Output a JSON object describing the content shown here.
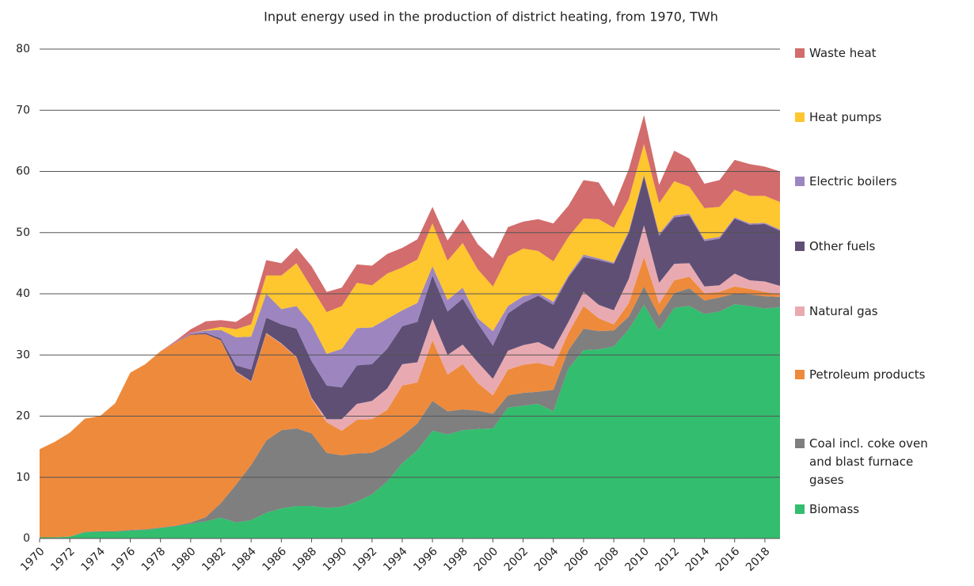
{
  "chart_data": {
    "type": "area",
    "title": "Input energy used in the production of district heating, from 1970, TWh",
    "x": [
      1970,
      1971,
      1972,
      1973,
      1974,
      1975,
      1976,
      1977,
      1978,
      1979,
      1980,
      1981,
      1982,
      1983,
      1984,
      1985,
      1986,
      1987,
      1988,
      1989,
      1990,
      1991,
      1992,
      1993,
      1994,
      1995,
      1996,
      1997,
      1998,
      1999,
      2000,
      2001,
      2002,
      2003,
      2004,
      2005,
      2006,
      2007,
      2008,
      2009,
      2010,
      2011,
      2012,
      2013,
      2014,
      2015,
      2016,
      2017,
      2018,
      2019
    ],
    "xlim": [
      1970,
      2019
    ],
    "xticks": [
      1970,
      1972,
      1974,
      1976,
      1978,
      1980,
      1982,
      1984,
      1986,
      1988,
      1990,
      1992,
      1994,
      1996,
      1998,
      2000,
      2002,
      2004,
      2006,
      2008,
      2010,
      2012,
      2014,
      2016,
      2018
    ],
    "ylim": [
      0,
      80
    ],
    "yticks": [
      0,
      10,
      20,
      30,
      40,
      50,
      60,
      70,
      80
    ],
    "grid": true,
    "stacked": true,
    "legend": "right",
    "series": [
      {
        "name": "Biomass",
        "color": "#33bd6e",
        "values": [
          0.2,
          0.2,
          0.3,
          1.0,
          1.1,
          1.1,
          1.3,
          1.4,
          1.7,
          2.0,
          2.4,
          2.8,
          3.4,
          2.6,
          3.0,
          4.2,
          4.9,
          5.3,
          5.3,
          5.0,
          5.2,
          6.0,
          7.2,
          9.3,
          12.3,
          14.4,
          17.6,
          17.0,
          17.7,
          17.9,
          18.0,
          21.4,
          21.7,
          22.0,
          20.8,
          27.8,
          30.8,
          30.9,
          31.4,
          34.2,
          38.2,
          34.0,
          37.7,
          38.0,
          36.7,
          37.1,
          38.3,
          38.0,
          37.6,
          37.8
        ]
      },
      {
        "name": "Coal incl. coke oven and blast furnace gases",
        "color": "#7f7f7f",
        "values": [
          0,
          0,
          0,
          0.1,
          0.1,
          0.1,
          0.1,
          0.1,
          0.1,
          0.1,
          0.2,
          0.7,
          2.4,
          6.2,
          9.0,
          11.8,
          12.8,
          12.7,
          11.9,
          9.0,
          8.4,
          7.9,
          6.8,
          5.9,
          4.5,
          4.4,
          4.9,
          3.8,
          3.4,
          3.0,
          2.4,
          2.0,
          2.1,
          2.0,
          3.5,
          3.0,
          3.5,
          3.0,
          2.6,
          2.1,
          3.0,
          2.4,
          2.4,
          2.9,
          2.2,
          2.3,
          1.7,
          1.9,
          2.0,
          1.7
        ]
      },
      {
        "name": "Petroleum products",
        "color": "#ee8a3c",
        "values": [
          14.4,
          15.6,
          17.0,
          18.5,
          18.8,
          20.9,
          25.7,
          27.0,
          28.8,
          29.9,
          30.7,
          29.9,
          26.6,
          18.4,
          13.6,
          17.5,
          14.1,
          11.6,
          5.6,
          5.0,
          4.0,
          5.5,
          5.5,
          5.8,
          8.2,
          6.7,
          9.9,
          6.0,
          7.4,
          4.5,
          3.0,
          4.2,
          4.6,
          4.7,
          3.8,
          2.8,
          3.7,
          2.1,
          1.0,
          2.2,
          4.8,
          2.0,
          2.1,
          1.9,
          1.2,
          0.9,
          1.2,
          0.9,
          0.7,
          0.4
        ]
      },
      {
        "name": "Natural gas",
        "color": "#e8aab0",
        "values": [
          0,
          0,
          0,
          0,
          0,
          0,
          0,
          0,
          0,
          0,
          0,
          0,
          0,
          0.1,
          0.1,
          0.1,
          0.1,
          0.1,
          0.2,
          0.5,
          1.9,
          2.6,
          3.0,
          3.5,
          3.5,
          3.3,
          3.5,
          3.2,
          3.2,
          3.4,
          2.7,
          3.1,
          3.2,
          3.4,
          2.8,
          1.8,
          2.3,
          2.2,
          2.3,
          4.0,
          5.2,
          3.4,
          2.7,
          2.2,
          1.1,
          1.1,
          2.1,
          1.4,
          1.7,
          1.4
        ]
      },
      {
        "name": "Other fuels",
        "color": "#5f4f75",
        "values": [
          0,
          0,
          0,
          0,
          0,
          0,
          0,
          0,
          0,
          0,
          0.1,
          0.2,
          0.3,
          1.0,
          1.9,
          2.5,
          3.1,
          4.6,
          6.0,
          5.5,
          5.2,
          6.3,
          6.0,
          6.5,
          6.2,
          6.6,
          7.1,
          7.1,
          7.5,
          6.4,
          5.4,
          6.1,
          6.9,
          7.6,
          7.3,
          7.3,
          5.7,
          7.3,
          7.6,
          7.5,
          8.0,
          7.7,
          7.6,
          7.8,
          7.4,
          7.6,
          9.0,
          9.1,
          9.4,
          9.0
        ]
      },
      {
        "name": "Electric boilers",
        "color": "#9d86bf",
        "values": [
          0,
          0,
          0,
          0,
          0,
          0,
          0,
          0,
          0,
          0.1,
          0.2,
          0.4,
          1.4,
          4.6,
          5.4,
          3.9,
          2.5,
          3.7,
          6.0,
          5.2,
          6.3,
          6.1,
          6.0,
          4.9,
          2.6,
          3.1,
          1.5,
          1.9,
          1.8,
          0.8,
          2.4,
          1.2,
          1.1,
          0.4,
          0.5,
          0.3,
          0.4,
          0.3,
          0.2,
          0.3,
          0.3,
          0.3,
          0.3,
          0.3,
          0.3,
          0.3,
          0.2,
          0.2,
          0.2,
          0.2
        ]
      },
      {
        "name": "Heat pumps",
        "color": "#fec62f",
        "values": [
          0,
          0,
          0,
          0,
          0,
          0,
          0,
          0,
          0,
          0,
          0,
          0.1,
          0.5,
          1.3,
          2.0,
          3.0,
          5.5,
          7.0,
          6.0,
          6.8,
          7.0,
          7.4,
          6.9,
          7.4,
          7.0,
          7.1,
          7.0,
          6.4,
          7.3,
          8.0,
          7.3,
          8.1,
          7.8,
          6.9,
          6.6,
          6.3,
          5.9,
          6.4,
          5.7,
          5.2,
          5.0,
          5.0,
          5.6,
          4.4,
          5.1,
          4.9,
          4.5,
          4.5,
          4.4,
          4.5
        ]
      },
      {
        "name": "Waste heat",
        "color": "#d36c6c",
        "values": [
          0,
          0,
          0,
          0,
          0,
          0,
          0,
          0,
          0,
          0.2,
          0.6,
          1.4,
          1.1,
          1.2,
          2.0,
          2.5,
          2.0,
          2.5,
          3.5,
          3.3,
          3.0,
          3.0,
          3.2,
          3.2,
          3.2,
          3.3,
          2.7,
          3.3,
          3.9,
          4.1,
          4.6,
          4.8,
          4.4,
          5.2,
          6.2,
          5.1,
          6.3,
          6.0,
          3.5,
          4.9,
          4.7,
          3.0,
          5.0,
          4.6,
          4.0,
          4.4,
          4.9,
          5.2,
          4.8,
          5.0
        ]
      }
    ]
  }
}
